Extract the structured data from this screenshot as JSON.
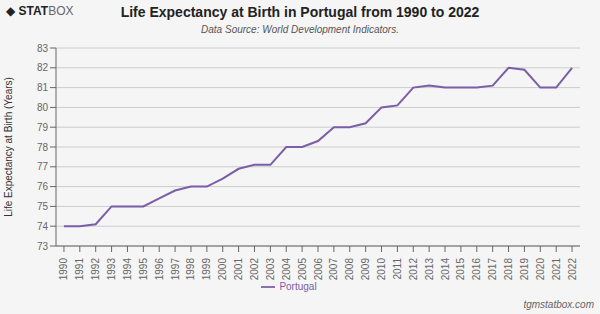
{
  "chart_data": {
    "type": "line",
    "title": "Life Expectancy at Birth in Portugal from 1990 to 2022",
    "subtitle": "Data Source: World Development Indicators.",
    "ylabel": "Life Expectancy at Birth (Years)",
    "logo": [
      "◆",
      "STAT",
      "BOX"
    ],
    "watermark": "tgmstatbox.com",
    "x": [
      1990,
      1991,
      1992,
      1993,
      1994,
      1995,
      1996,
      1997,
      1998,
      1999,
      2000,
      2001,
      2002,
      2003,
      2004,
      2005,
      2006,
      2007,
      2008,
      2009,
      2010,
      2011,
      2012,
      2013,
      2014,
      2015,
      2016,
      2017,
      2018,
      2019,
      2020,
      2021,
      2022
    ],
    "series": [
      {
        "name": "Portugal",
        "color": "#7B5EA7",
        "values": [
          74.0,
          74.0,
          74.1,
          75.0,
          75.0,
          75.0,
          75.4,
          75.8,
          76.0,
          76.0,
          76.4,
          76.9,
          77.1,
          77.1,
          78.0,
          78.0,
          78.3,
          79.0,
          79.0,
          79.2,
          80.0,
          80.1,
          81.0,
          81.1,
          81.0,
          81.0,
          81.0,
          81.1,
          82.0,
          81.9,
          81.0,
          81.0,
          82.0
        ]
      }
    ],
    "xlim": [
      1989.5,
      2022.5
    ],
    "xticks": [
      1990,
      1991,
      1992,
      1993,
      1994,
      1995,
      1996,
      1997,
      1998,
      1999,
      2000,
      2001,
      2002,
      2003,
      2004,
      2005,
      2006,
      2007,
      2008,
      2009,
      2010,
      2011,
      2012,
      2013,
      2014,
      2015,
      2016,
      2017,
      2018,
      2019,
      2020,
      2021,
      2022
    ],
    "ylim": [
      73,
      83
    ],
    "yticks": [
      73,
      74,
      75,
      76,
      77,
      78,
      79,
      80,
      81,
      82,
      83
    ],
    "grid": true,
    "legend": "bottom"
  }
}
